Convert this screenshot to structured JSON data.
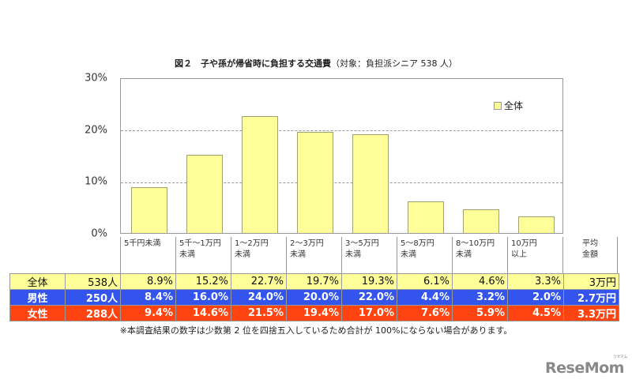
{
  "title": {
    "main": "図２　子や孫が帰省時に負担する交通費",
    "sub": "（対象：負担派シニア 538 人）"
  },
  "chart_data": {
    "type": "bar",
    "title": "図２ 子や孫が帰省時に負担する交通費（対象：負担派シニア 538 人）",
    "categories": [
      "5千円未満",
      "5千～1万円未満",
      "1～2万円未満",
      "2～3万円未満",
      "3～5万円未満",
      "5～8万円未満",
      "8～10万円未満",
      "10万円以上"
    ],
    "series": [
      {
        "name": "全体",
        "values": [
          8.9,
          15.2,
          22.7,
          19.7,
          19.3,
          6.1,
          4.6,
          3.3
        ],
        "color": "#ffff99"
      }
    ],
    "table_series": [
      {
        "name": "全体",
        "n": "538人",
        "values": [
          8.9,
          15.2,
          22.7,
          19.7,
          19.3,
          6.1,
          4.6,
          3.3
        ],
        "average": "3万円",
        "color": "#ffff99"
      },
      {
        "name": "男性",
        "n": "250人",
        "values": [
          8.4,
          16.0,
          24.0,
          20.0,
          22.0,
          4.4,
          3.2,
          2.0
        ],
        "average": "2.7万円",
        "color": "#3355ee"
      },
      {
        "name": "女性",
        "n": "288人",
        "values": [
          9.4,
          14.6,
          21.5,
          19.4,
          17.0,
          7.6,
          5.9,
          4.5
        ],
        "average": "3.3万円",
        "color": "#ff4411"
      }
    ],
    "xlabel": "",
    "ylabel": "",
    "ylim": [
      0,
      30
    ],
    "yticks": [
      "0%",
      "10%",
      "20%",
      "30%"
    ],
    "grid": true,
    "legend_position": "upper right"
  },
  "yaxis": {
    "t0": "0%",
    "t10": "10%",
    "t20": "20%",
    "t30": "30%"
  },
  "legend": {
    "label": "全体"
  },
  "categories": [
    "5千円未満",
    "5千～1万円\n未満",
    "1～2万円\n未満",
    "2～3万円\n未満",
    "3～5万円\n未満",
    "5～8万円\n未満",
    "8～10万円\n未満",
    "10万円\n以上",
    "平均\n金額"
  ],
  "table": {
    "rows": [
      {
        "label": "全体",
        "n": "538人",
        "cells": [
          "8.9%",
          "15.2%",
          "22.7%",
          "19.7%",
          "19.3%",
          "6.1%",
          "4.6%",
          "3.3%",
          "3万円"
        ]
      },
      {
        "label": "男性",
        "n": "250人",
        "cells": [
          "8.4%",
          "16.0%",
          "24.0%",
          "20.0%",
          "22.0%",
          "4.4%",
          "3.2%",
          "2.0%",
          "2.7万円"
        ]
      },
      {
        "label": "女性",
        "n": "288人",
        "cells": [
          "9.4%",
          "14.6%",
          "21.5%",
          "19.4%",
          "17.0%",
          "7.6%",
          "5.9%",
          "4.5%",
          "3.3万円"
        ]
      }
    ]
  },
  "note": "※本調査結果の数字は少数第 2 位を四捨五入しているため合計が 100%にならない場合があります。",
  "logo": {
    "text": "ReseMom",
    "kana": "リセマム"
  }
}
